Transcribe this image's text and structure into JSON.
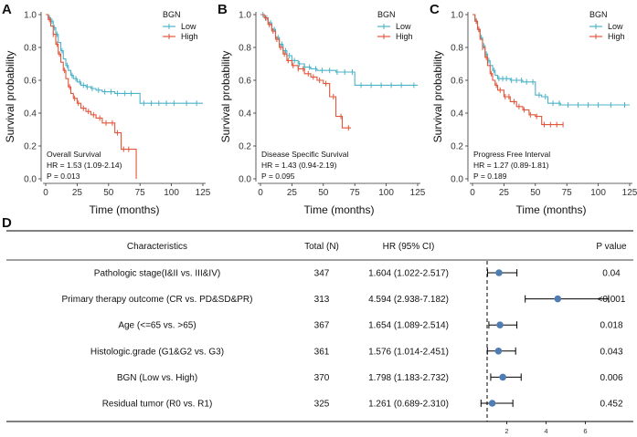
{
  "colors": {
    "low": "#4bb3c8",
    "high": "#e2553a",
    "dot": "#4f7db3",
    "axis": "#333333",
    "text": "#111111"
  },
  "chart_data": [
    {
      "type": "line",
      "panel_label": "A",
      "xlabel": "Time (months)",
      "ylabel": "Survival probability",
      "xlim": [
        0,
        125
      ],
      "ylim": [
        0,
        1
      ],
      "xticks": [
        0,
        25,
        50,
        75,
        100,
        125
      ],
      "yticks": [
        0.0,
        0.2,
        0.4,
        0.6,
        0.8,
        1.0
      ],
      "legend_title": "BGN",
      "legend": [
        "Low",
        "High"
      ],
      "annotation": [
        "Overall Survival",
        "HR = 1.53 (1.09-2.14)",
        "P = 0.013"
      ],
      "series": [
        {
          "name": "Low",
          "x": [
            0,
            2,
            4,
            6,
            8,
            10,
            12,
            14,
            16,
            18,
            20,
            22,
            25,
            28,
            32,
            36,
            40,
            45,
            50,
            55,
            60,
            70,
            75,
            125
          ],
          "y": [
            1.0,
            0.98,
            0.96,
            0.92,
            0.88,
            0.83,
            0.78,
            0.73,
            0.69,
            0.66,
            0.63,
            0.61,
            0.59,
            0.57,
            0.56,
            0.55,
            0.54,
            0.53,
            0.53,
            0.52,
            0.52,
            0.52,
            0.46,
            0.46
          ],
          "censor_x": [
            3,
            5,
            7,
            9,
            13,
            17,
            21,
            24,
            27,
            30,
            33,
            37,
            42,
            47,
            52,
            57,
            63,
            68,
            78,
            84,
            90,
            96,
            102,
            112,
            120
          ]
        },
        {
          "name": "High",
          "x": [
            0,
            2,
            4,
            6,
            8,
            10,
            12,
            14,
            16,
            18,
            20,
            22,
            25,
            28,
            32,
            36,
            40,
            45,
            50,
            55,
            60,
            65,
            72
          ],
          "y": [
            1.0,
            0.97,
            0.93,
            0.88,
            0.82,
            0.76,
            0.71,
            0.66,
            0.61,
            0.56,
            0.52,
            0.49,
            0.46,
            0.43,
            0.41,
            0.39,
            0.37,
            0.34,
            0.34,
            0.28,
            0.18,
            0.18,
            0.0
          ],
          "censor_x": [
            3,
            6,
            9,
            11,
            15,
            19,
            23,
            26,
            30,
            34,
            38,
            43,
            48,
            53,
            57,
            62,
            66
          ]
        }
      ]
    },
    {
      "type": "line",
      "panel_label": "B",
      "xlabel": "Time (months)",
      "ylabel": "Survival probability",
      "xlim": [
        0,
        125
      ],
      "ylim": [
        0,
        1
      ],
      "xticks": [
        0,
        25,
        50,
        75,
        100,
        125
      ],
      "yticks": [
        0.0,
        0.2,
        0.4,
        0.6,
        0.8,
        1.0
      ],
      "legend_title": "BGN",
      "legend": [
        "Low",
        "High"
      ],
      "annotation": [
        "Disease Specific Survival",
        "HR = 1.43 (0.94-2.19)",
        "P = 0.095"
      ],
      "series": [
        {
          "name": "Low",
          "x": [
            0,
            3,
            6,
            9,
            12,
            15,
            18,
            21,
            25,
            30,
            35,
            40,
            45,
            50,
            60,
            70,
            75,
            125
          ],
          "y": [
            1.0,
            0.98,
            0.95,
            0.91,
            0.86,
            0.82,
            0.78,
            0.75,
            0.72,
            0.7,
            0.68,
            0.67,
            0.66,
            0.66,
            0.65,
            0.65,
            0.57,
            0.57
          ],
          "censor_x": [
            2,
            5,
            8,
            11,
            14,
            17,
            20,
            23,
            27,
            31,
            35,
            39,
            44,
            49,
            55,
            61,
            67,
            73,
            80,
            88,
            96,
            104,
            112,
            122
          ]
        },
        {
          "name": "High",
          "x": [
            0,
            3,
            6,
            9,
            12,
            15,
            18,
            21,
            25,
            30,
            35,
            40,
            45,
            50,
            55,
            60,
            65,
            72
          ],
          "y": [
            1.0,
            0.98,
            0.94,
            0.9,
            0.85,
            0.8,
            0.76,
            0.72,
            0.69,
            0.67,
            0.64,
            0.62,
            0.6,
            0.58,
            0.5,
            0.38,
            0.31,
            0.31
          ],
          "censor_x": [
            4,
            7,
            10,
            13,
            16,
            19,
            22,
            26,
            30,
            34,
            38,
            42,
            47,
            52,
            58,
            64,
            70
          ]
        }
      ]
    },
    {
      "type": "line",
      "panel_label": "C",
      "xlabel": "Time (months)",
      "ylabel": "Survival probability",
      "xlim": [
        0,
        125
      ],
      "ylim": [
        0,
        1
      ],
      "xticks": [
        0,
        25,
        50,
        75,
        100,
        125
      ],
      "yticks": [
        0.0,
        0.2,
        0.4,
        0.6,
        0.8,
        1.0
      ],
      "legend_title": "BGN",
      "legend": [
        "Low",
        "High"
      ],
      "annotation": [
        "Progress Free Interval",
        "HR = 1.27 (0.89-1.81)",
        "P = 0.189"
      ],
      "series": [
        {
          "name": "Low",
          "x": [
            0,
            2,
            4,
            6,
            8,
            10,
            12,
            14,
            16,
            18,
            20,
            25,
            30,
            35,
            40,
            45,
            50,
            55,
            60,
            70,
            125
          ],
          "y": [
            1.0,
            0.96,
            0.91,
            0.86,
            0.81,
            0.76,
            0.72,
            0.69,
            0.66,
            0.63,
            0.61,
            0.61,
            0.6,
            0.6,
            0.59,
            0.59,
            0.51,
            0.5,
            0.46,
            0.45,
            0.45
          ],
          "censor_x": [
            3,
            5,
            7,
            9,
            11,
            13,
            17,
            21,
            24,
            27,
            31,
            35,
            39,
            43,
            48,
            53,
            58,
            64,
            69,
            76,
            84,
            92,
            100,
            110,
            121
          ]
        },
        {
          "name": "High",
          "x": [
            0,
            2,
            4,
            6,
            8,
            10,
            12,
            14,
            16,
            18,
            20,
            25,
            30,
            35,
            40,
            45,
            50,
            55,
            60,
            65,
            72
          ],
          "y": [
            1.0,
            0.96,
            0.91,
            0.85,
            0.8,
            0.74,
            0.69,
            0.64,
            0.6,
            0.57,
            0.54,
            0.5,
            0.47,
            0.44,
            0.42,
            0.39,
            0.38,
            0.33,
            0.33,
            0.33,
            0.33
          ],
          "censor_x": [
            3,
            5,
            8,
            11,
            15,
            19,
            22,
            26,
            29,
            33,
            37,
            41,
            46,
            51,
            57,
            62,
            67,
            72
          ]
        }
      ]
    },
    {
      "type": "table",
      "subtype": "forest",
      "panel_label": "D",
      "columns": [
        "Characteristics",
        "Total (N)",
        "HR (95% CI)",
        "P value"
      ],
      "x_ticks": [
        2,
        4,
        6
      ],
      "reference_line": 1,
      "rows": [
        {
          "characteristic": "Pathologic stage(I&II vs. III&IV)",
          "total": "347",
          "hr_text": "1.604 (1.022-2.517)",
          "p": "0.04",
          "hr": 1.604,
          "lo": 1.022,
          "hi": 2.517
        },
        {
          "characteristic": "Primary therapy outcome (CR vs. PD&SD&PR)",
          "total": "313",
          "hr_text": "4.594 (2.938-7.182)",
          "p": "<0.001",
          "hr": 4.594,
          "lo": 2.938,
          "hi": 7.182
        },
        {
          "characteristic": "Age (<=65 vs. >65)",
          "total": "367",
          "hr_text": "1.654 (1.089-2.514)",
          "p": "0.018",
          "hr": 1.654,
          "lo": 1.089,
          "hi": 2.514
        },
        {
          "characteristic": "Histologic.grade (G1&G2 vs. G3)",
          "total": "361",
          "hr_text": "1.576 (1.014-2.451)",
          "p": "0.043",
          "hr": 1.576,
          "lo": 1.014,
          "hi": 2.451
        },
        {
          "characteristic": "BGN (Low vs. High)",
          "total": "370",
          "hr_text": "1.798 (1.183-2.732)",
          "p": "0.006",
          "hr": 1.798,
          "lo": 1.183,
          "hi": 2.732
        },
        {
          "characteristic": "Residual tumor (R0 vs. R1)",
          "total": "325",
          "hr_text": "1.261 (0.689-2.310)",
          "p": "0.452",
          "hr": 1.261,
          "lo": 0.689,
          "hi": 2.31
        }
      ]
    }
  ]
}
